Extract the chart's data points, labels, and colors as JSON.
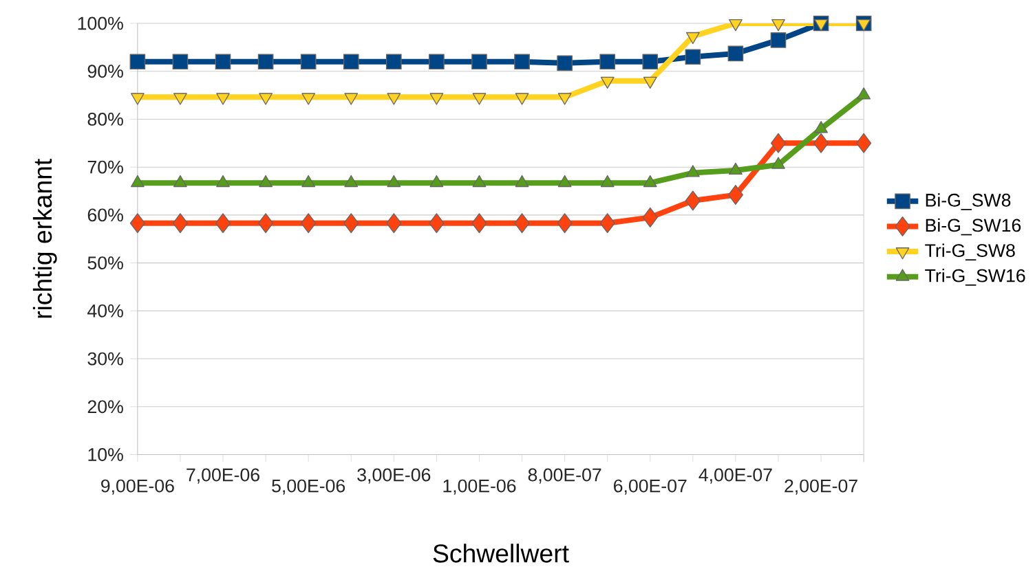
{
  "chart_data": {
    "type": "line",
    "xlabel": "Schwellwert",
    "ylabel": "richtig erkannt",
    "categories": [
      "9,00E-06",
      null,
      "7,00E-06",
      null,
      "5,00E-06",
      null,
      "3,00E-06",
      null,
      "1,00E-06",
      null,
      "8,00E-07",
      null,
      "6,00E-07",
      null,
      "4,00E-07",
      null,
      "2,00E-07",
      null
    ],
    "series": [
      {
        "name": "Bi-G_SW8",
        "color": "#004586",
        "marker": "square",
        "values": [
          92,
          92,
          92,
          92,
          92,
          92,
          92,
          92,
          92,
          92,
          91.7,
          92,
          92,
          93,
          93.7,
          96.5,
          100,
          100
        ]
      },
      {
        "name": "Bi-G_SW16",
        "color": "#ff420e",
        "marker": "diamond",
        "values": [
          58.3,
          58.3,
          58.3,
          58.3,
          58.3,
          58.3,
          58.3,
          58.3,
          58.3,
          58.3,
          58.3,
          58.3,
          59.5,
          63,
          64.2,
          75,
          75,
          75
        ]
      },
      {
        "name": "Tri-G_SW8",
        "color": "#ffd320",
        "marker": "triangle-down",
        "values": [
          84.6,
          84.6,
          84.6,
          84.6,
          84.6,
          84.6,
          84.6,
          84.6,
          84.6,
          84.6,
          84.6,
          88,
          88,
          97.3,
          100,
          100,
          100,
          100
        ]
      },
      {
        "name": "Tri-G_SW16",
        "color": "#579d1c",
        "marker": "triangle",
        "values": [
          66.7,
          66.7,
          66.7,
          66.7,
          66.7,
          66.7,
          66.7,
          66.7,
          66.7,
          66.7,
          66.7,
          66.7,
          66.7,
          68.8,
          69.3,
          70.5,
          78,
          85
        ]
      }
    ],
    "ylim": [
      10,
      100
    ],
    "yticks": [
      {
        "value": 10,
        "label": "10%"
      },
      {
        "value": 20,
        "label": "20%"
      },
      {
        "value": 30,
        "label": "30%"
      },
      {
        "value": 40,
        "label": "40%"
      },
      {
        "value": 50,
        "label": "50%"
      },
      {
        "value": 60,
        "label": "60%"
      },
      {
        "value": 70,
        "label": "70%"
      },
      {
        "value": 80,
        "label": "80%"
      },
      {
        "value": 90,
        "label": "90%"
      },
      {
        "value": 100,
        "label": "100%"
      }
    ],
    "grid": "y",
    "legend": "right",
    "line_style": "solid"
  }
}
